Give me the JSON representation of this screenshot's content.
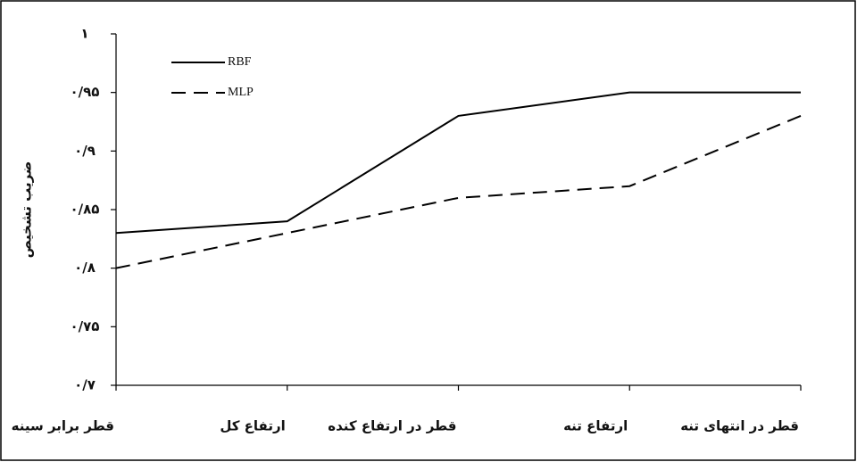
{
  "chart_data": {
    "type": "line",
    "y_label": "ضریب تشخیص",
    "categories": [
      "قطر برابر سینه",
      "ارتفاع کل",
      "قطر در ارتفاع کنده",
      "ارتفاع تنه",
      "قطر در انتهای تنه"
    ],
    "series": [
      {
        "name": "RBF",
        "color": "#000000",
        "dash": false,
        "values": [
          0.83,
          0.84,
          0.93,
          0.95,
          0.95
        ]
      },
      {
        "name": "MLP",
        "color": "#000000",
        "dash": true,
        "values": [
          0.8,
          0.83,
          0.86,
          0.87,
          0.93
        ]
      }
    ],
    "ylim": [
      0.7,
      1
    ],
    "yticks": [
      {
        "value": 0.7,
        "label": "۰/۷"
      },
      {
        "value": 0.75,
        "label": "۰/۷۵"
      },
      {
        "value": 0.8,
        "label": "۰/۸"
      },
      {
        "value": 0.85,
        "label": "۰/۸۵"
      },
      {
        "value": 0.9,
        "label": "۰/۹"
      },
      {
        "value": 0.95,
        "label": "۰/۹۵"
      },
      {
        "value": 1,
        "label": "۱"
      }
    ]
  }
}
